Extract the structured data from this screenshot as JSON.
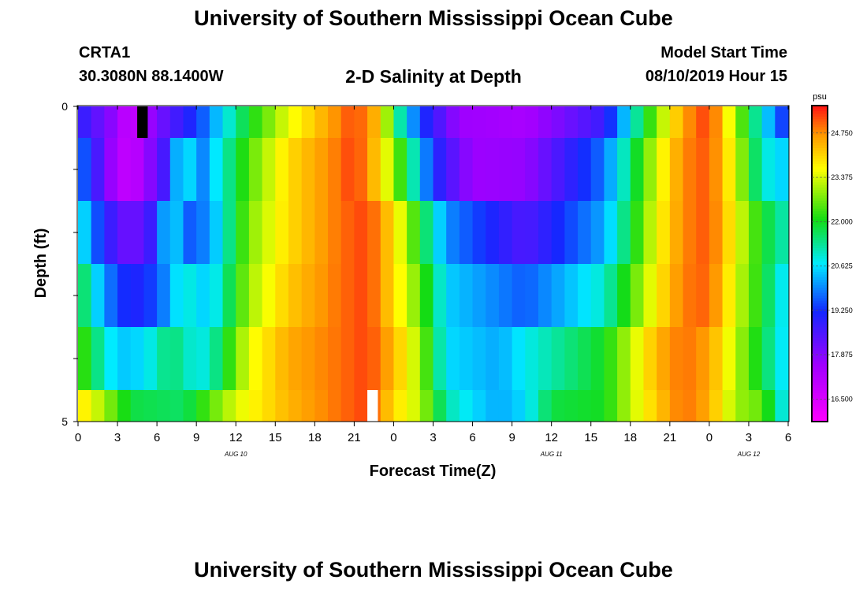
{
  "title": "University of Southern Mississippi Ocean Cube",
  "footer_title": "University of Southern Mississippi Ocean Cube",
  "station": {
    "id": "CRTA1",
    "coords": "30.3080N 88.1400W"
  },
  "model": {
    "label": "Model Start Time",
    "value": "08/10/2019 Hour 15"
  },
  "chart_data": {
    "type": "heatmap",
    "title": "2-D Salinity at Depth",
    "xlabel": "Forecast Time(Z)",
    "ylabel": "Depth (ft)",
    "x_start_hour": 0,
    "x_end_hour": 54,
    "x_step_hours": 1,
    "x_tick_step_hours": 3,
    "x_tick_labels": [
      "0",
      "3",
      "6",
      "9",
      "12",
      "15",
      "18",
      "21",
      "0",
      "3",
      "6",
      "9",
      "12",
      "15",
      "18",
      "21",
      "0",
      "3",
      "6"
    ],
    "day_labels": [
      {
        "label": "AUG 10",
        "hour": 12
      },
      {
        "label": "AUG 11",
        "hour": 36
      },
      {
        "label": "AUG 12",
        "hour": 51
      }
    ],
    "y_range": [
      0,
      5
    ],
    "y_tick_labels": [
      "0",
      "5"
    ],
    "colorbar": {
      "unit": "psu",
      "min": 15.8,
      "max": 25.6,
      "tick_values": [
        16.5,
        17.875,
        19.25,
        20.625,
        22.0,
        23.375,
        24.75
      ],
      "tick_labels": [
        "16.500",
        "17.875",
        "19.250",
        "20.625",
        "22.000",
        "23.375",
        "24.750"
      ]
    },
    "layers": [
      {
        "depth_top": 0.0,
        "depth_bottom": 0.5,
        "anchors_hours": [
          0,
          3,
          4,
          5,
          7,
          9,
          13,
          16,
          20,
          21,
          23,
          24,
          26,
          29,
          34,
          40,
          42,
          44,
          46,
          48,
          50,
          52,
          54
        ],
        "anchors_values": [
          19.0,
          17.6,
          16.6,
          17.4,
          18.5,
          19.3,
          22.0,
          23.5,
          24.9,
          25.3,
          24.2,
          21.8,
          19.4,
          17.6,
          17.4,
          18.8,
          20.8,
          22.8,
          24.6,
          25.4,
          23.0,
          20.8,
          19.0
        ]
      },
      {
        "depth_top": 0.5,
        "depth_bottom": 1.5,
        "anchors_hours": [
          0,
          3,
          4,
          5,
          7,
          8,
          9,
          13,
          16,
          20,
          21,
          23,
          25,
          27,
          30,
          34,
          40,
          42,
          44,
          46,
          48,
          50,
          52,
          54
        ],
        "anchors_values": [
          20.0,
          17.2,
          16.8,
          17.5,
          19.0,
          21.5,
          19.6,
          22.5,
          24.0,
          25.0,
          25.4,
          24.0,
          21.8,
          19.2,
          17.6,
          17.7,
          19.8,
          21.5,
          23.4,
          24.8,
          25.2,
          23.4,
          21.0,
          20.4
        ]
      },
      {
        "depth_top": 1.5,
        "depth_bottom": 2.5,
        "anchors_hours": [
          0,
          2,
          4,
          6,
          7,
          8,
          10,
          13,
          16,
          20,
          22,
          24,
          26,
          28,
          34,
          40,
          42,
          44,
          46,
          48,
          50,
          52,
          54
        ],
        "anchors_values": [
          21.0,
          19.0,
          18.0,
          19.0,
          21.2,
          19.5,
          20.0,
          22.8,
          24.0,
          25.0,
          25.3,
          24.0,
          22.0,
          20.0,
          18.5,
          20.2,
          21.8,
          23.6,
          24.8,
          25.2,
          23.6,
          22.0,
          21.0
        ]
      },
      {
        "depth_top": 2.5,
        "depth_bottom": 3.5,
        "anchors_hours": [
          0,
          2,
          4,
          6,
          8,
          10,
          13,
          16,
          20,
          22,
          24,
          26,
          28,
          34,
          40,
          42,
          44,
          46,
          48,
          50,
          52,
          54
        ],
        "anchors_values": [
          22.0,
          20.0,
          19.0,
          19.5,
          21.0,
          20.4,
          23.0,
          24.2,
          25.0,
          25.3,
          24.0,
          22.6,
          20.5,
          19.6,
          21.0,
          22.4,
          23.8,
          24.9,
          25.1,
          23.4,
          22.0,
          20.4
        ]
      },
      {
        "depth_top": 3.5,
        "depth_bottom": 4.5,
        "anchors_hours": [
          0,
          2,
          3,
          5,
          7,
          9,
          10,
          13,
          16,
          20,
          22,
          24,
          26,
          28,
          32,
          34,
          40,
          42,
          44,
          46,
          48,
          50,
          52,
          54
        ],
        "anchors_values": [
          22.6,
          21.0,
          20.4,
          20.6,
          21.6,
          20.8,
          21.0,
          23.5,
          24.5,
          25.0,
          25.3,
          24.4,
          23.0,
          20.6,
          20.2,
          20.8,
          22.0,
          23.2,
          24.4,
          25.0,
          24.6,
          23.2,
          21.8,
          20.4
        ]
      },
      {
        "depth_top": 4.5,
        "depth_bottom": 5.0,
        "anchors_hours": [
          0,
          2,
          4,
          8,
          12,
          16,
          20,
          22,
          24,
          26,
          28,
          30,
          32,
          34,
          36,
          40,
          42,
          44,
          46,
          48,
          50,
          52,
          54
        ],
        "anchors_values": [
          24.0,
          23.0,
          21.8,
          21.6,
          23.4,
          24.4,
          25.0,
          25.3,
          24.0,
          23.2,
          21.2,
          20.6,
          20.2,
          20.6,
          21.8,
          22.0,
          23.2,
          24.2,
          25.0,
          24.5,
          23.0,
          22.6,
          20.4
        ]
      }
    ],
    "markers": [
      {
        "type": "gap",
        "color": "#000000",
        "hour": 4.5,
        "depth_top": 0.0,
        "depth_bottom": 0.5
      },
      {
        "type": "gap",
        "color": "#ffffff",
        "hour": 22.0,
        "depth_top": 4.5,
        "depth_bottom": 5.0
      }
    ]
  }
}
